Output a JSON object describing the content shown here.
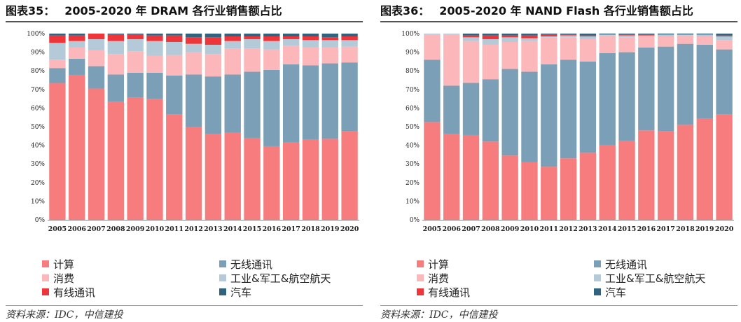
{
  "colors": {
    "计算": "#f77c7e",
    "无线通讯": "#7b9fb6",
    "消费": "#fbb7b9",
    "工业&军工&航空航天": "#b4cad8",
    "有线通讯": "#ee353a",
    "汽车": "#2f637f"
  },
  "charts": [
    {
      "figure_no": "图表35：",
      "title": "2005-2020 年 DRAM 各行业销售额占比",
      "source": "资料来源：IDC，中信建投",
      "legend": [
        "计算",
        "无线通讯",
        "消费",
        "工业&军工&航空航天",
        "有线通讯",
        "汽车"
      ]
    },
    {
      "figure_no": "图表36：",
      "title": "2005-2020 年 NAND Flash 各行业销售额占比",
      "source": "资料来源：IDC，中信建投",
      "legend": [
        "计算",
        "无线通讯",
        "消费",
        "工业&军工&航空航天",
        "有线通讯",
        "汽车"
      ]
    }
  ],
  "chart_data": [
    {
      "type": "bar",
      "stacked": true,
      "percent": true,
      "title": "2005-2020 年 DRAM 各行业销售额占比",
      "categories": [
        "2005",
        "2006",
        "2007",
        "2008",
        "2009",
        "2010",
        "2011",
        "2012",
        "2013",
        "2014",
        "2015",
        "2016",
        "2017",
        "2018",
        "2019",
        "2020"
      ],
      "ylim": [
        0,
        100
      ],
      "yticks": [
        "0%",
        "10%",
        "20%",
        "30%",
        "40%",
        "50%",
        "60%",
        "70%",
        "80%",
        "90%",
        "100%"
      ],
      "series": [
        {
          "name": "计算",
          "values": [
            73.5,
            77.5,
            70.5,
            63.5,
            65.5,
            65,
            56.5,
            50,
            46,
            47,
            44,
            39.5,
            41.5,
            43,
            43.5,
            47.5
          ]
        },
        {
          "name": "无线通讯",
          "values": [
            8,
            9,
            12,
            14.5,
            13.5,
            14,
            21,
            28,
            31,
            31,
            35.5,
            41,
            42,
            40,
            40.5,
            37
          ]
        },
        {
          "name": "消费",
          "values": [
            4.5,
            6,
            8.5,
            11,
            11.5,
            9,
            11,
            12,
            12,
            14,
            12.5,
            11,
            10,
            9.5,
            8.5,
            8.5
          ]
        },
        {
          "name": "工业&军工&航空航天",
          "values": [
            9,
            3.5,
            6,
            7,
            6.5,
            8,
            7,
            4.5,
            5,
            4,
            5,
            4.5,
            3.5,
            4,
            4,
            3.5
          ]
        },
        {
          "name": "有线通讯",
          "values": [
            4,
            3,
            3,
            3.5,
            2.5,
            3,
            3.5,
            3.5,
            4,
            2.5,
            1.5,
            2.5,
            1.5,
            2,
            1.5,
            2
          ]
        },
        {
          "name": "汽车",
          "values": [
            1,
            1,
            0,
            0.5,
            0.5,
            1,
            1,
            2,
            2,
            1.5,
            1.5,
            1.5,
            1.5,
            1.5,
            2,
            1.5
          ]
        }
      ]
    },
    {
      "type": "bar",
      "stacked": true,
      "percent": true,
      "title": "2005-2020 年 NAND Flash 各行业销售额占比",
      "categories": [
        "2005",
        "2006",
        "2007",
        "2008",
        "2009",
        "2010",
        "2011",
        "2012",
        "2013",
        "2014",
        "2015",
        "2016",
        "2017",
        "2018",
        "2019",
        "2020"
      ],
      "ylim": [
        0,
        100
      ],
      "yticks": [
        "0%",
        "10%",
        "20%",
        "30%",
        "40%",
        "50%",
        "60%",
        "70%",
        "80%",
        "90%",
        "100%"
      ],
      "series": [
        {
          "name": "计算",
          "values": [
            52.5,
            46,
            45.5,
            42,
            34.5,
            31,
            28.5,
            33,
            36,
            40,
            42.5,
            48,
            47.5,
            51,
            54.5,
            56.5
          ]
        },
        {
          "name": "无线通讯",
          "values": [
            33.5,
            26,
            28,
            33.5,
            46.5,
            48.5,
            55,
            53,
            49,
            49.5,
            47.5,
            44.5,
            45.5,
            43.5,
            39.5,
            35
          ]
        },
        {
          "name": "消费",
          "values": [
            13.5,
            27.5,
            22.5,
            18.5,
            14.5,
            16.5,
            14.5,
            12,
            12,
            9.5,
            8,
            6,
            5.5,
            4.5,
            4.5,
            5
          ]
        },
        {
          "name": "工业&军工&航空航天",
          "values": [
            0.5,
            0.5,
            2,
            3,
            2.5,
            1.5,
            0.5,
            1,
            1.5,
            0.5,
            1,
            0.5,
            1,
            0.5,
            1,
            2
          ]
        },
        {
          "name": "有线通讯",
          "values": [
            0,
            0,
            1,
            2,
            1,
            1.5,
            1,
            0.5,
            0.5,
            0,
            0.5,
            0.5,
            0,
            0,
            0,
            0.5
          ]
        },
        {
          "name": "汽车",
          "values": [
            0,
            0,
            1,
            1,
            1,
            1,
            0.5,
            0.5,
            1,
            0.5,
            0.5,
            0.5,
            0.5,
            0.5,
            0.5,
            1
          ]
        }
      ]
    }
  ]
}
